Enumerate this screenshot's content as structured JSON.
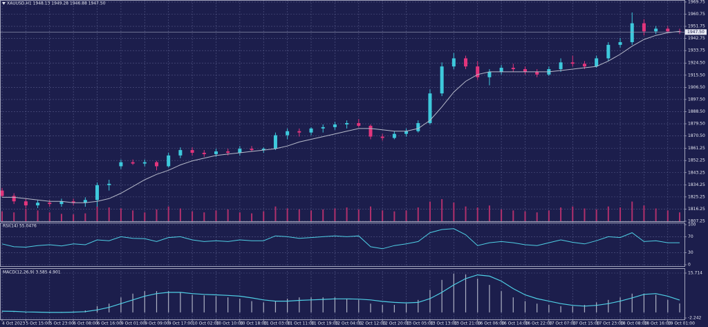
{
  "chart_data": [
    {
      "type": "candlestick",
      "title": "XAUUSD,H1  1948.13 1949.28 1946.88 1947.50",
      "categories": [
        "4 Oct 2023",
        null,
        "5 Oct 15:00",
        null,
        "5 Oct 23:00",
        null,
        "6 Oct 08:00",
        null,
        "6 Oct 16:00",
        null,
        "9 Oct 01:00",
        null,
        "9 Oct 09:00",
        null,
        "9 Oct 17:00",
        null,
        "10 Oct 02:00",
        null,
        "10 Oct 10:00",
        null,
        "10 Oct 18:00",
        null,
        "11 Oct 03:00",
        null,
        "11 Oct 11:00",
        null,
        "11 Oct 19:00",
        null,
        "12 Oct 04:00",
        null,
        "12 Oct 12:00",
        null,
        "12 Oct 20:00",
        null,
        "13 Oct 05:00",
        null,
        "13 Oct 13:00",
        null,
        "13 Oct 21:00",
        null,
        "16 Oct 06:00",
        null,
        "16 Oct 14:00",
        null,
        "16 Oct 22:00",
        null,
        "17 Oct 07:00",
        null,
        "17 Oct 15:00",
        null,
        "17 Oct 23:00",
        null,
        "18 Oct 08:00",
        null,
        "18 Oct 16:00",
        null,
        "19 Oct 01:00",
        null
      ],
      "open": [
        1830,
        1826,
        1822,
        1819,
        1821,
        1820,
        1822,
        1821,
        1823,
        1834,
        1848,
        1851,
        1850,
        1851,
        1848,
        1856,
        1860,
        1858,
        1857,
        1859,
        1858,
        1861,
        1860,
        1861,
        1871,
        1874,
        1873,
        1876,
        1877,
        1879,
        1880,
        1878,
        1870,
        1869,
        1872,
        1874,
        1880,
        1902,
        1922,
        1928,
        1922,
        1914,
        1918,
        1921,
        1920,
        1918,
        1916,
        1920,
        1925,
        1924,
        1922,
        1928,
        1938,
        1940,
        1954,
        1948,
        1950,
        1948
      ],
      "high": [
        1832,
        1828,
        1824,
        1823,
        1823,
        1824,
        1824,
        1825,
        1836,
        1838,
        1853,
        1853,
        1853,
        1852,
        1858,
        1862,
        1862,
        1860,
        1861,
        1861,
        1863,
        1863,
        1862,
        1873,
        1876,
        1876,
        1877,
        1879,
        1881,
        1882,
        1883,
        1879,
        1872,
        1874,
        1876,
        1882,
        1905,
        1925,
        1932,
        1930,
        1926,
        1920,
        1923,
        1924,
        1922,
        1920,
        1922,
        1928,
        1930,
        1926,
        1930,
        1940,
        1943,
        1962,
        1957,
        1952,
        1952,
        1950
      ],
      "low": [
        1825,
        1820,
        1817,
        1817,
        1818,
        1818,
        1819,
        1818,
        1818,
        1830,
        1846,
        1849,
        1848,
        1845,
        1847,
        1854,
        1856,
        1855,
        1855,
        1856,
        1856,
        1859,
        1858,
        1860,
        1868,
        1870,
        1871,
        1873,
        1875,
        1876,
        1877,
        1868,
        1867,
        1868,
        1870,
        1873,
        1879,
        1900,
        1920,
        1920,
        1912,
        1908,
        1916,
        1918,
        1916,
        1914,
        1915,
        1918,
        1922,
        1920,
        1921,
        1926,
        1936,
        1938,
        1945,
        1946,
        1947,
        1946
      ],
      "close": [
        1826,
        1822,
        1819,
        1821,
        1820,
        1822,
        1821,
        1823,
        1834,
        1835,
        1851,
        1850,
        1851,
        1848,
        1856,
        1860,
        1858,
        1857,
        1859,
        1858,
        1861,
        1860,
        1861,
        1871,
        1874,
        1873,
        1876,
        1877,
        1879,
        1880,
        1878,
        1870,
        1869,
        1872,
        1874,
        1880,
        1902,
        1922,
        1928,
        1922,
        1914,
        1918,
        1921,
        1920,
        1918,
        1916,
        1920,
        1925,
        1924,
        1922,
        1928,
        1938,
        1940,
        1954,
        1948,
        1950,
        1948,
        1947.5
      ],
      "up_color": "#3ec9dc",
      "down_color": "#e2357c",
      "ma": {
        "color": "#b8bccb",
        "values": [
          1825,
          1825,
          1824,
          1823,
          1822,
          1822,
          1821,
          1821,
          1822,
          1824,
          1828,
          1833,
          1838,
          1842,
          1845,
          1849,
          1852,
          1854,
          1856,
          1857,
          1858,
          1859,
          1860,
          1861,
          1863,
          1866,
          1868,
          1870,
          1872,
          1874,
          1876,
          1876,
          1875,
          1874,
          1874,
          1876,
          1882,
          1892,
          1903,
          1911,
          1916,
          1918,
          1918,
          1918,
          1918,
          1918,
          1918,
          1919,
          1920,
          1921,
          1922,
          1926,
          1931,
          1937,
          1942,
          1945,
          1947,
          1948
        ]
      },
      "volume": {
        "color": "#b0306c",
        "values": [
          20,
          18,
          25,
          22,
          18,
          15,
          14,
          16,
          30,
          28,
          26,
          22,
          18,
          24,
          30,
          26,
          20,
          18,
          22,
          24,
          18,
          16,
          20,
          30,
          26,
          24,
          22,
          24,
          26,
          28,
          24,
          30,
          22,
          20,
          22,
          28,
          40,
          45,
          38,
          30,
          28,
          32,
          24,
          22,
          20,
          18,
          22,
          28,
          30,
          26,
          24,
          30,
          28,
          40,
          32,
          26,
          22,
          18
        ]
      },
      "last_price": {
        "value": 1947.5,
        "label": "1947.50"
      },
      "ylim": [
        1807.25,
        1971.25
      ],
      "yticks": [
        1969.75,
        1960.75,
        1951.75,
        1942.75,
        1933.75,
        {
          "value": 1924.5,
          "label": "1924.50"
        },
        {
          "value": 1915.5,
          "label": "1915.50"
        },
        {
          "value": 1906.5,
          "label": "1906.50"
        },
        {
          "value": 1897.5,
          "label": "1897.50"
        },
        {
          "value": 1888.5,
          "label": "1888.50"
        },
        {
          "value": 1879.5,
          "label": "1879.50"
        },
        {
          "value": 1870.5,
          "label": "1870.50"
        },
        1861.25,
        1852.25,
        1843.25,
        1834.25,
        1825.25,
        1816.25,
        1807.25
      ],
      "grid": true
    },
    {
      "type": "line",
      "title": "RSI(14) 55.0476",
      "color": "#4fd0e6",
      "values": [
        52,
        45,
        44,
        48,
        50,
        47,
        52,
        50,
        62,
        60,
        70,
        66,
        65,
        58,
        68,
        70,
        62,
        58,
        60,
        58,
        62,
        60,
        60,
        72,
        70,
        66,
        68,
        70,
        72,
        70,
        72,
        45,
        40,
        48,
        52,
        58,
        80,
        88,
        90,
        75,
        48,
        55,
        58,
        55,
        50,
        48,
        55,
        62,
        56,
        52,
        60,
        70,
        68,
        80,
        58,
        60,
        55,
        55.05
      ],
      "ylim": [
        0,
        100
      ],
      "yticks": [
        100,
        70,
        30,
        0
      ],
      "grid": true
    },
    {
      "type": "macd",
      "title": "MACD(12,26,9) 3.585 4.901",
      "hist_color": "#aeb2c4",
      "signal_color": "#4fd0e6",
      "histogram": [
        0.3,
        0.1,
        -0.2,
        0,
        0.2,
        0.2,
        0.4,
        0.8,
        2.5,
        3.5,
        6,
        7.5,
        8.5,
        8.5,
        8.5,
        8,
        7,
        6.8,
        6.5,
        6,
        5.5,
        4.5,
        4,
        4.5,
        5.5,
        6,
        6,
        6,
        6,
        5.5,
        5,
        3.5,
        3,
        3,
        3.5,
        5,
        9,
        13,
        15.5,
        15.2,
        13.5,
        11,
        8.5,
        6,
        4.5,
        3.5,
        3,
        2.5,
        2.5,
        3,
        4,
        5,
        6,
        7.5,
        7.5,
        7,
        5,
        3.585
      ],
      "signal": [
        0.5,
        0.4,
        0.2,
        0.1,
        0,
        0,
        0.1,
        0.3,
        1,
        2,
        3.5,
        5,
        6.5,
        7.5,
        8,
        8,
        7.5,
        7.2,
        7,
        6.8,
        6.5,
        5.8,
        5,
        4.5,
        4.5,
        4.8,
        5,
        5.2,
        5.4,
        5.4,
        5.3,
        5,
        4.4,
        4,
        3.8,
        4,
        5.5,
        8,
        11,
        13.5,
        15,
        14.5,
        12.5,
        9.5,
        7,
        5.5,
        4.5,
        3.5,
        2.8,
        2.5,
        2.8,
        3.5,
        4.5,
        5.8,
        7.2,
        7.5,
        6.5,
        4.901
      ],
      "ylim": [
        -2.242,
        15.714
      ],
      "yticks": [
        15.714,
        -2.242
      ],
      "grid": true
    }
  ]
}
